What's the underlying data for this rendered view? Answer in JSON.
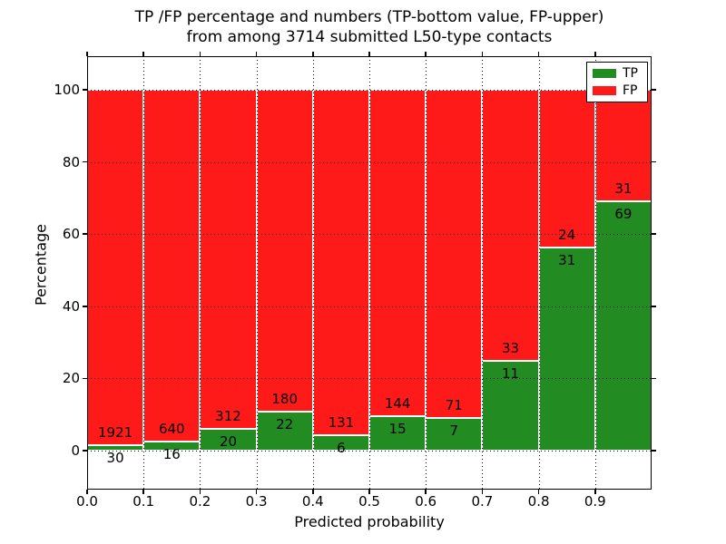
{
  "figure": {
    "title_line1": "TP /FP percentage and numbers (TP-bottom value, FP-upper)",
    "title_line2": "from among 3714 submitted L50-type contacts"
  },
  "chart_data": {
    "type": "bar",
    "stacked": true,
    "normalized_to_percent": true,
    "title": "TP /FP percentage and numbers (TP-bottom value, FP-upper) from among 3714 submitted L50-type contacts",
    "xlabel": "Predicted probability",
    "ylabel": "Percentage",
    "x_tick_labels": [
      "0.0",
      "0.1",
      "0.2",
      "0.3",
      "0.4",
      "0.5",
      "0.6",
      "0.7",
      "0.8",
      "0.9"
    ],
    "y_tick_values": [
      0,
      20,
      40,
      60,
      80,
      100
    ],
    "xlim": [
      0.0,
      1.0
    ],
    "ylim": [
      -10,
      110
    ],
    "grid": true,
    "grid_style": "dotted",
    "total_contacts": 3714,
    "colors": {
      "tp": "#228b22",
      "fp": "#ff1a1a",
      "bar_edge": "#ffffff"
    },
    "legend": {
      "position": "upper right",
      "entries": [
        {
          "label": "TP",
          "color": "#228b22"
        },
        {
          "label": "FP",
          "color": "#ff1a1a"
        }
      ]
    },
    "bins": [
      {
        "x_start": 0.0,
        "x_end": 0.1,
        "tp": 30,
        "fp": 1921,
        "tp_pct": 1.5
      },
      {
        "x_start": 0.1,
        "x_end": 0.2,
        "tp": 16,
        "fp": 640,
        "tp_pct": 2.4
      },
      {
        "x_start": 0.2,
        "x_end": 0.3,
        "tp": 20,
        "fp": 312,
        "tp_pct": 6.0
      },
      {
        "x_start": 0.3,
        "x_end": 0.4,
        "tp": 22,
        "fp": 180,
        "tp_pct": 10.9
      },
      {
        "x_start": 0.4,
        "x_end": 0.5,
        "tp": 6,
        "fp": 131,
        "tp_pct": 4.4
      },
      {
        "x_start": 0.5,
        "x_end": 0.6,
        "tp": 15,
        "fp": 144,
        "tp_pct": 9.4
      },
      {
        "x_start": 0.6,
        "x_end": 0.7,
        "tp": 7,
        "fp": 71,
        "tp_pct": 9.0
      },
      {
        "x_start": 0.7,
        "x_end": 0.8,
        "tp": 11,
        "fp": 33,
        "tp_pct": 25.0
      },
      {
        "x_start": 0.8,
        "x_end": 0.9,
        "tp": 31,
        "fp": 24,
        "tp_pct": 56.4
      },
      {
        "x_start": 0.9,
        "x_end": 1.0,
        "tp": 69,
        "fp": 31,
        "tp_pct": 69.0
      }
    ]
  }
}
